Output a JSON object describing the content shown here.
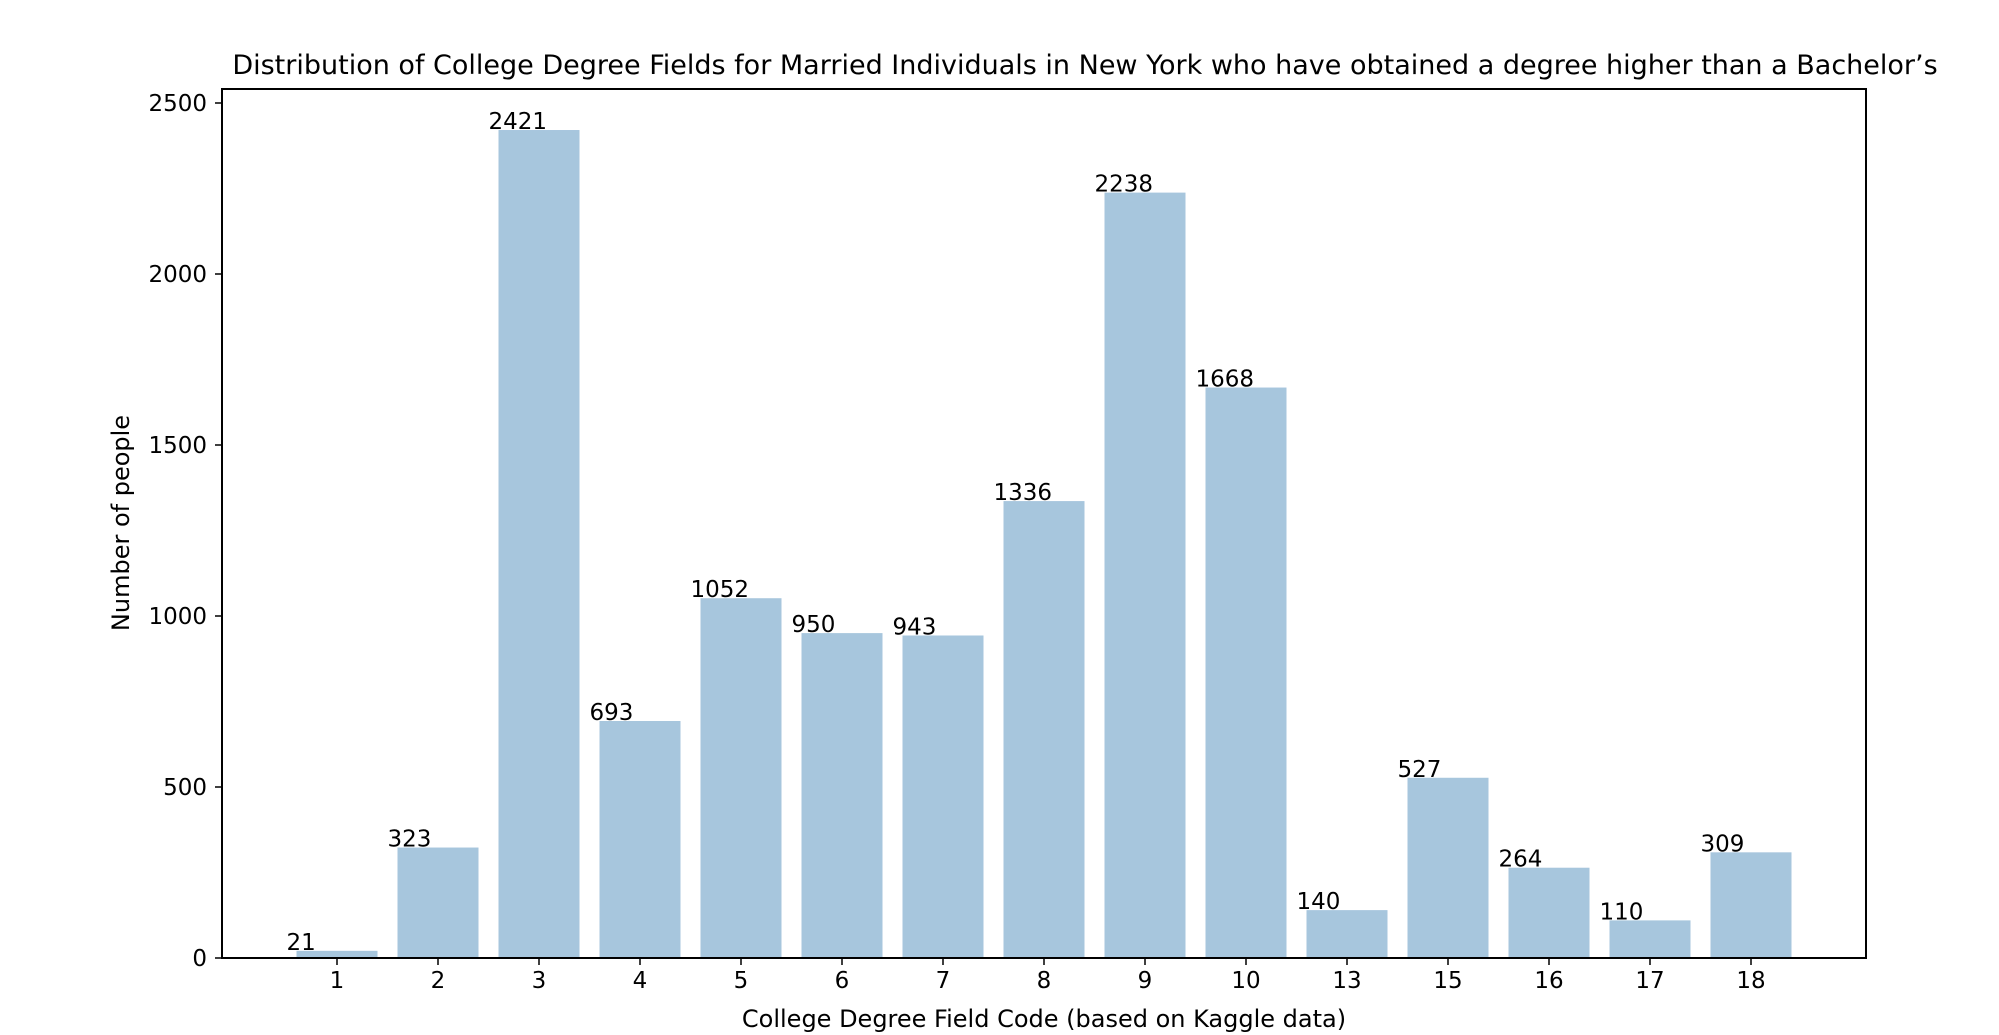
{
  "chart_data": {
    "type": "bar",
    "title": "Distribution of College Degree Fields for Married Individuals in New York who have obtained a degree higher than a Bachelor’s",
    "xlabel": "College Degree Field Code (based on Kaggle data)",
    "ylabel": "Number of people",
    "categories": [
      "1",
      "2",
      "3",
      "4",
      "5",
      "6",
      "7",
      "8",
      "9",
      "10",
      "13",
      "15",
      "16",
      "17",
      "18"
    ],
    "values": [
      21,
      323,
      2421,
      693,
      1052,
      950,
      943,
      1336,
      2238,
      1668,
      140,
      527,
      264,
      110,
      309
    ],
    "ylim": [
      0,
      2550
    ],
    "yticks": [
      0,
      500,
      1000,
      1500,
      2000,
      2500
    ],
    "grid": false,
    "bar_color": "#a7c6dd",
    "show_value_labels": true
  }
}
